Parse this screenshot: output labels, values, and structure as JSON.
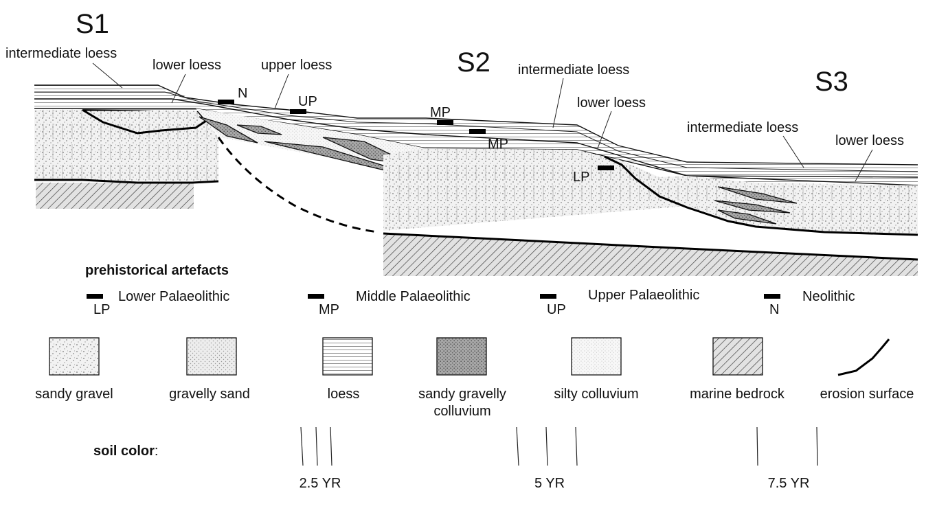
{
  "sites": {
    "s1": "S1",
    "s2": "S2",
    "s3": "S3"
  },
  "section_labels": {
    "s1_intermediate": "intermediate loess",
    "s1_lower": "lower loess",
    "upper": "upper loess",
    "s2_intermediate": "intermediate loess",
    "s2_lower": "lower loess",
    "s3_intermediate": "intermediate loess",
    "s3_lower": "lower loess"
  },
  "artefact_markers": {
    "n": "N",
    "up": "UP",
    "mp_top": "MP",
    "mp_bottom": "MP",
    "lp": "LP"
  },
  "legend": {
    "artefacts_title": "prehistorical artefacts",
    "artefacts": [
      {
        "code": "LP",
        "name": "Lower Palaeolithic"
      },
      {
        "code": "MP",
        "name": "Middle Palaeolithic"
      },
      {
        "code": "UP",
        "name": "Upper Palaeolithic"
      },
      {
        "code": "N",
        "name": "Neolithic"
      }
    ],
    "materials": [
      {
        "label": "sandy gravel"
      },
      {
        "label": "gravelly sand"
      },
      {
        "label": "loess"
      },
      {
        "label": "sandy gravelly",
        "label2": "colluvium"
      },
      {
        "label": "silty colluvium"
      },
      {
        "label": "marine bedrock"
      },
      {
        "label": "erosion surface"
      }
    ],
    "soil_color_title": "soil color",
    "soil_color_suffix": ":",
    "soil_colors": [
      "2.5 YR",
      "5 YR",
      "7.5 YR"
    ]
  }
}
